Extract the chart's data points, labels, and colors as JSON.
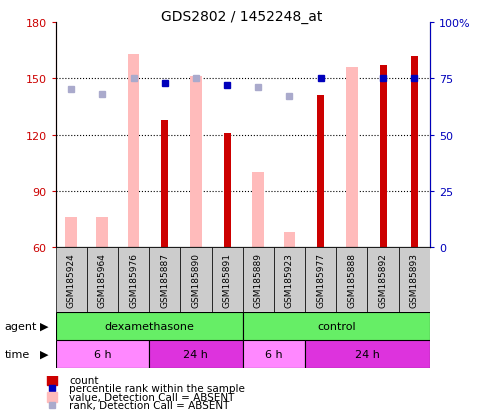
{
  "title": "GDS2802 / 1452248_at",
  "samples": [
    "GSM185924",
    "GSM185964",
    "GSM185976",
    "GSM185887",
    "GSM185890",
    "GSM185891",
    "GSM185889",
    "GSM185923",
    "GSM185977",
    "GSM185888",
    "GSM185892",
    "GSM185893"
  ],
  "count_values": [
    null,
    null,
    null,
    128,
    null,
    121,
    null,
    null,
    141,
    null,
    157,
    162
  ],
  "count_absent_values": [
    76,
    76,
    163,
    null,
    151,
    null,
    100,
    68,
    null,
    156,
    null,
    null
  ],
  "percentile_rank_pct": [
    null,
    null,
    null,
    73,
    null,
    72,
    null,
    null,
    75,
    null,
    75,
    75
  ],
  "rank_absent_pct": [
    70,
    68,
    75,
    null,
    75,
    null,
    71,
    67,
    null,
    null,
    null,
    null
  ],
  "ylim_left": [
    60,
    180
  ],
  "ylim_right": [
    0,
    100
  ],
  "yticks_left": [
    60,
    90,
    120,
    150,
    180
  ],
  "yticks_right": [
    0,
    25,
    50,
    75,
    100
  ],
  "ytick_labels_left": [
    "60",
    "90",
    "120",
    "150",
    "180"
  ],
  "ytick_labels_right": [
    "0",
    "25",
    "50",
    "75",
    "100%"
  ],
  "count_color": "#cc0000",
  "count_absent_color": "#ffbbbb",
  "percentile_color": "#0000bb",
  "rank_absent_color": "#aaaacc",
  "grid_color": "#000000",
  "tick_label_color_left": "#cc0000",
  "tick_label_color_right": "#0000bb",
  "sample_bg_color": "#cccccc",
  "agent_green": "#66ee66",
  "time_light_pink": "#ff88ff",
  "time_dark_magenta": "#dd33dd",
  "dex_span": 6,
  "ctrl_span": 6,
  "time_6h_dex": 3,
  "time_24h_dex": 3,
  "time_6h_ctrl": 2,
  "time_24h_ctrl": 4
}
